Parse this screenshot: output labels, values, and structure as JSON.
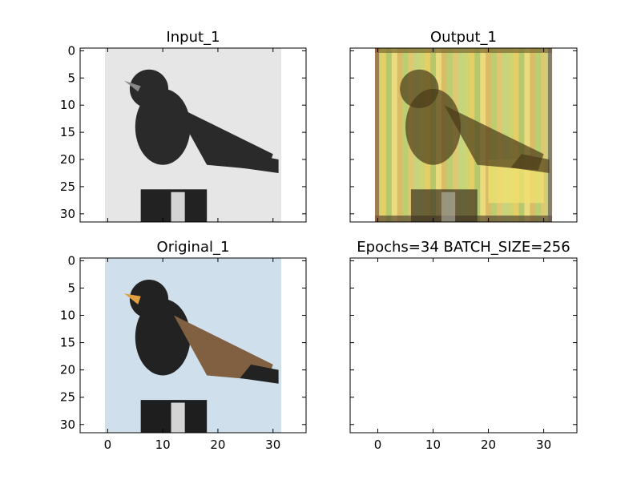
{
  "figure": {
    "background": "#ffffff"
  },
  "chart_data": [
    {
      "type": "heatmap",
      "title": "Input_1",
      "image": "grayscale bird",
      "xlim": [
        -5,
        36
      ],
      "ylim": [
        31.5,
        -0.5
      ],
      "xticks": [
        0,
        10,
        20,
        30
      ],
      "yticks": [
        0,
        5,
        10,
        15,
        20,
        25,
        30
      ],
      "show_xtick_labels": false,
      "show_ytick_labels": true,
      "colors": {
        "background": "#e6e6e6",
        "bird": "#2a2a2a",
        "perch": "#222222"
      }
    },
    {
      "type": "heatmap",
      "title": "Output_1",
      "image": "reconstructed bird (noisy color)",
      "xlim": [
        -5,
        36
      ],
      "ylim": [
        31.5,
        -0.5
      ],
      "xticks": [
        0,
        10,
        20,
        30
      ],
      "yticks": [
        0,
        5,
        10,
        15,
        20,
        25,
        30
      ],
      "show_xtick_labels": false,
      "show_ytick_labels": false,
      "colors": {
        "background": "#d9c878",
        "bird": "#4a3a18",
        "accent_green": "#9ac860",
        "accent_yellow": "#f0e070",
        "accent_orange": "#d8a050"
      }
    },
    {
      "type": "heatmap",
      "title": "Original_1",
      "image": "color bird",
      "xlim": [
        -5,
        36
      ],
      "ylim": [
        31.5,
        -0.5
      ],
      "xticks": [
        0,
        10,
        20,
        30
      ],
      "yticks": [
        0,
        5,
        10,
        15,
        20,
        25,
        30
      ],
      "show_xtick_labels": true,
      "show_ytick_labels": true,
      "colors": {
        "background": "#cfe0ec",
        "bird": "#222222",
        "beak": "#e0a040",
        "wing": "#806040",
        "perch": "#1e1e1e"
      }
    },
    {
      "type": "heatmap",
      "title": "Epochs=34 BATCH_SIZE=256",
      "image": "",
      "xlim": [
        -5,
        36
      ],
      "ylim": [
        31.5,
        -0.5
      ],
      "xticks": [
        0,
        10,
        20,
        30
      ],
      "yticks": [
        0,
        5,
        10,
        15,
        20,
        25,
        30
      ],
      "show_xtick_labels": true,
      "show_ytick_labels": false
    }
  ]
}
